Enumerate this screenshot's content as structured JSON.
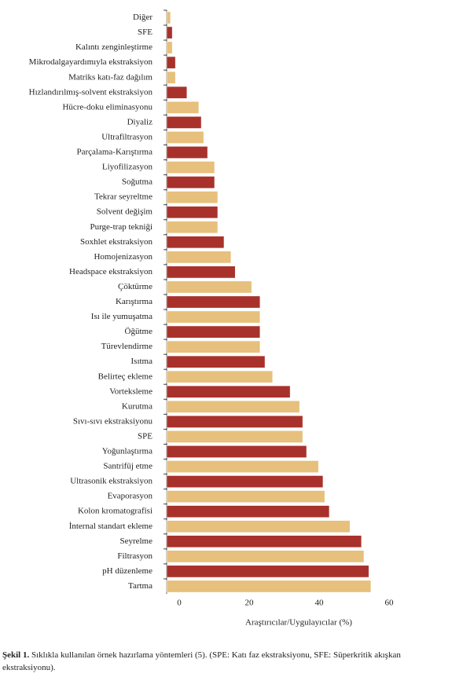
{
  "chart_data": {
    "type": "hbar",
    "categories": [
      "Diğer",
      "SFE",
      "Kalıntı zenginleştirme",
      "Mikrodalgayardımıyla ekstraksiyon",
      "Matriks katı-faz dağılım",
      "Hızlandırılmış-solvent ekstraksiyon",
      "Hücre-doku eliminasyonu",
      "Diyaliz",
      "Ultrafiltrasyon",
      "Parçalama-Karıştırma",
      "Liyofilizasyon",
      "Soğutma",
      "Tekrar seyreltme",
      "Solvent değişim",
      "Purge-trap tekniği",
      "Soxhlet ekstraksiyon",
      "Homojenizasyon",
      "Headspace ekstraksiyon",
      "Çöktürme",
      "Karıştırma",
      "Isı ile yumuşatma",
      "Öğütme",
      "Türevlendirme",
      "Isıtma",
      "Belirteç ekleme",
      "Vorteksleme",
      "Kurutma",
      "Sıvı-sıvı ekstraksiyonu",
      "SPE",
      "Yoğunlaştırma",
      "Santrifüj etme",
      "Ultrasonik ekstraksiyon",
      "Evaporasyon",
      "Kolon kromatografisi",
      "İnternal standart ekleme",
      "Seyrelme",
      "Filtrasyon",
      "pH düzenleme",
      "Tartma"
    ],
    "values": [
      1.1,
      1.6,
      1.6,
      2.5,
      2.5,
      5.8,
      9.2,
      9.9,
      10.6,
      11.7,
      13.7,
      13.7,
      14.6,
      14.6,
      14.6,
      16.4,
      18.4,
      19.6,
      24.3,
      26.7,
      26.7,
      26.7,
      26.7,
      28.1,
      30.3,
      35.3,
      38,
      38.9,
      38.9,
      40,
      43.4,
      44.7,
      45.2,
      46.5,
      52.4,
      55.7,
      56.4,
      57.8,
      58.4
    ],
    "colors": [
      "#e6c07c",
      "#a8322b"
    ],
    "xlim": [
      0,
      62
    ],
    "xticks": [
      0,
      20,
      40,
      60
    ],
    "x_label": "Araştırıcılar/Uygulayıcılar (%)",
    "caption_label": "Şekil 1.",
    "caption_text": "Sıklıkla kullanılan örnek hazırlama yöntemleri (5). (SPE: Katı faz ekstraksiyonu, SFE: Süperkritik akışkan ekstraksiyonu)."
  }
}
